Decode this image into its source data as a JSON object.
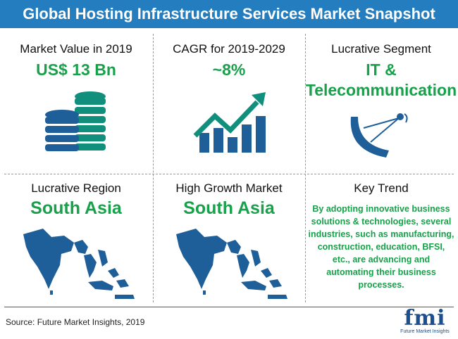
{
  "title": "Global Hosting Infrastructure Services Market Snapshot",
  "cells": {
    "market_value": {
      "label": "Market Value in 2019",
      "value": "US$ 13 Bn",
      "icon": "coin-stack-icon"
    },
    "cagr": {
      "label": "CAGR for 2019-2029",
      "value": "~8%",
      "icon": "growth-chart-icon"
    },
    "segment": {
      "label": "Lucrative Segment",
      "value_line1": "IT &",
      "value_line2": "Telecommunication",
      "icon": "satellite-dish-icon"
    },
    "region": {
      "label": "Lucrative Region",
      "value": "South Asia",
      "icon": "south-asia-map-icon"
    },
    "growth_market": {
      "label": "High Growth Market",
      "value": "South Asia",
      "icon": "south-asia-map-icon"
    },
    "key_trend": {
      "label": "Key Trend",
      "text": "By adopting innovative business solutions & technologies, several industries, such as manufacturing, construction, education, BFSI, etc., are advancing and automating their business processes."
    }
  },
  "source": "Source: Future Market Insights, 2019",
  "logo": {
    "text": "fmi",
    "subtitle": "Future Market Insights"
  },
  "colors": {
    "header": "#237dbf",
    "value": "#17a14a",
    "icon_blue": "#1f5f99",
    "icon_teal": "#0f8f7c"
  }
}
